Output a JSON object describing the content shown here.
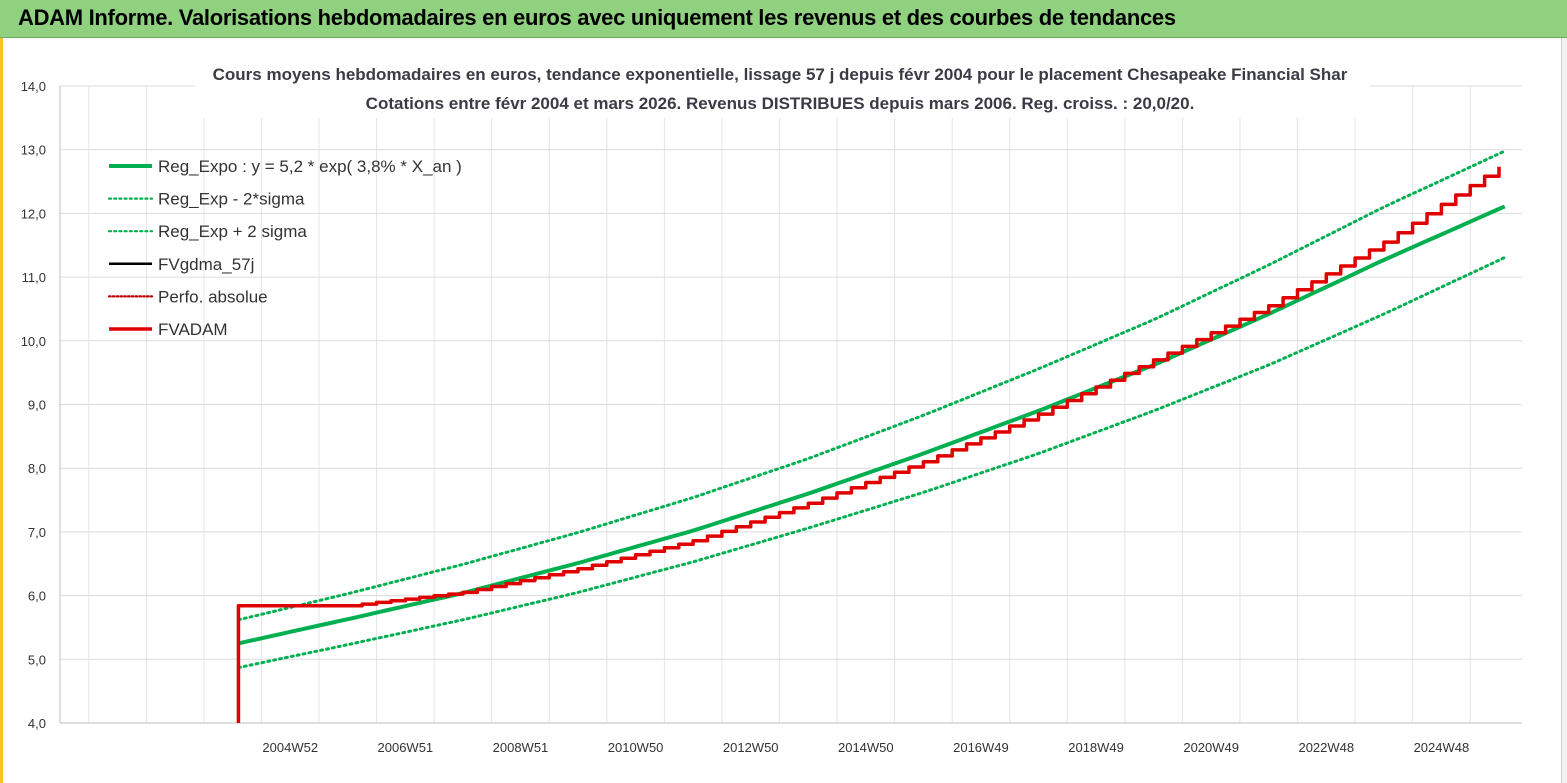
{
  "header": {
    "title": "ADAM Informe. Valorisations hebdomadaires en euros avec uniquement les revenus et des courbes de tendances"
  },
  "chart_data": {
    "type": "line",
    "title_lines": [
      "Cours moyens hebdomadaires en euros, tendance exponentielle, lissage 57 j depuis févr 2004 pour le placement Chesapeake Financial Shar",
      "Cotations entre févr 2004 et mars 2026. Revenus DISTRIBUES depuis mars 2006. Reg. croiss. : 20,0/20."
    ],
    "xlabel": "",
    "ylabel": "",
    "x_range": [
      2001.0,
      2026.4
    ],
    "x_ticks": [
      {
        "label": "2004W52",
        "x": 2005.0
      },
      {
        "label": "2006W51",
        "x": 2007.0
      },
      {
        "label": "2008W51",
        "x": 2009.0
      },
      {
        "label": "2010W50",
        "x": 2011.0
      },
      {
        "label": "2012W50",
        "x": 2013.0
      },
      {
        "label": "2014W50",
        "x": 2015.0
      },
      {
        "label": "2016W49",
        "x": 2017.0
      },
      {
        "label": "2018W49",
        "x": 2019.0
      },
      {
        "label": "2020W49",
        "x": 2021.0
      },
      {
        "label": "2022W48",
        "x": 2023.0
      },
      {
        "label": "2024W48",
        "x": 2025.0
      }
    ],
    "ylim": [
      4.0,
      14.0
    ],
    "y_ticks": [
      "4,0",
      "5,0",
      "6,0",
      "7,0",
      "8,0",
      "9,0",
      "10,0",
      "11,0",
      "12,0",
      "13,0",
      "14,0"
    ],
    "grid": true,
    "legend_placement": "top-left",
    "series": [
      {
        "name": "Reg_Expo : y = 5,2 * exp( 3,8% *  X_an )",
        "style": "solid",
        "color": "#00b050",
        "points": [
          [
            2004.1,
            5.25
          ],
          [
            2006.0,
            5.63
          ],
          [
            2008.0,
            6.04
          ],
          [
            2010.0,
            6.51
          ],
          [
            2012.0,
            7.02
          ],
          [
            2014.0,
            7.6
          ],
          [
            2016.0,
            8.23
          ],
          [
            2018.0,
            8.9
          ],
          [
            2020.0,
            9.62
          ],
          [
            2022.0,
            10.42
          ],
          [
            2024.0,
            11.27
          ],
          [
            2026.2,
            12.15
          ]
        ]
      },
      {
        "name": "Reg_Exp - 2*sigma",
        "style": "dotted",
        "color": "#00b050",
        "points": [
          [
            2004.1,
            4.87
          ],
          [
            2006.0,
            5.23
          ],
          [
            2008.0,
            5.62
          ],
          [
            2010.0,
            6.05
          ],
          [
            2012.0,
            6.53
          ],
          [
            2014.0,
            7.06
          ],
          [
            2016.0,
            7.62
          ],
          [
            2018.0,
            8.23
          ],
          [
            2020.0,
            8.9
          ],
          [
            2022.0,
            9.62
          ],
          [
            2024.0,
            10.42
          ],
          [
            2026.2,
            11.35
          ]
        ]
      },
      {
        "name": "Reg_Exp + 2 sigma",
        "style": "dotted",
        "color": "#00b050",
        "points": [
          [
            2004.1,
            5.62
          ],
          [
            2006.0,
            6.03
          ],
          [
            2008.0,
            6.49
          ],
          [
            2010.0,
            6.99
          ],
          [
            2012.0,
            7.54
          ],
          [
            2014.0,
            8.15
          ],
          [
            2016.0,
            8.83
          ],
          [
            2018.0,
            9.56
          ],
          [
            2020.0,
            10.33
          ],
          [
            2022.0,
            11.19
          ],
          [
            2024.0,
            12.1
          ],
          [
            2026.2,
            13.02
          ]
        ]
      },
      {
        "name": "FVgdma_57j",
        "style": "solid",
        "color": "#000000",
        "points": []
      },
      {
        "name": "Perfo. absolue",
        "style": "dotted",
        "color": "#c00000",
        "points": []
      },
      {
        "name": "FVADAM",
        "style": "solid",
        "color": "#e00000",
        "points": [
          [
            2004.1,
            4.0
          ],
          [
            2004.1,
            5.84
          ],
          [
            2006.0,
            5.84
          ],
          [
            2008.0,
            6.05
          ],
          [
            2010.0,
            6.42
          ],
          [
            2012.0,
            6.86
          ],
          [
            2014.0,
            7.45
          ],
          [
            2016.0,
            8.1
          ],
          [
            2018.0,
            8.85
          ],
          [
            2020.0,
            9.7
          ],
          [
            2022.0,
            10.55
          ],
          [
            2024.0,
            11.55
          ],
          [
            2026.2,
            12.85
          ]
        ]
      }
    ]
  }
}
